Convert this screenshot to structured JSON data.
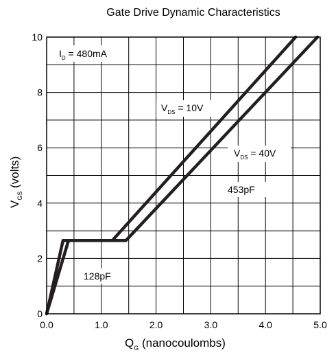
{
  "chart_data": {
    "type": "line",
    "title": "Gate Drive Dynamic Characteristics",
    "xlabel": {
      "main": "Q",
      "sub": "G",
      "rest": " (nanocoulombs)"
    },
    "ylabel": {
      "main": "V",
      "sub": "GS",
      "rest": " (volts)"
    },
    "xlim": [
      0,
      5
    ],
    "ylim": [
      0,
      10
    ],
    "grid": true,
    "x_ticks": [
      "0.0",
      "1.0",
      "2.0",
      "3.0",
      "4.0",
      "5.0"
    ],
    "y_ticks": [
      "0",
      "2",
      "4",
      "6",
      "8",
      "10"
    ],
    "series": [
      {
        "name": "V_DS = 10V",
        "points": [
          [
            0,
            0
          ],
          [
            0.3,
            2.65
          ],
          [
            1.2,
            2.65
          ],
          [
            4.55,
            10
          ]
        ]
      },
      {
        "name": "V_DS = 40V",
        "points": [
          [
            0,
            0
          ],
          [
            0.4,
            2.65
          ],
          [
            1.45,
            2.65
          ],
          [
            4.95,
            10
          ]
        ]
      }
    ],
    "annotations": {
      "id": {
        "main": "I",
        "sub": "D",
        "rest": " = 480mA"
      },
      "vds10": {
        "main": "V",
        "sub": "DS",
        "rest": " = 10V"
      },
      "vds40": {
        "main": "V",
        "sub": "DS",
        "rest": " = 40V"
      },
      "cap_high": "453pF",
      "cap_low": "128pF"
    }
  }
}
